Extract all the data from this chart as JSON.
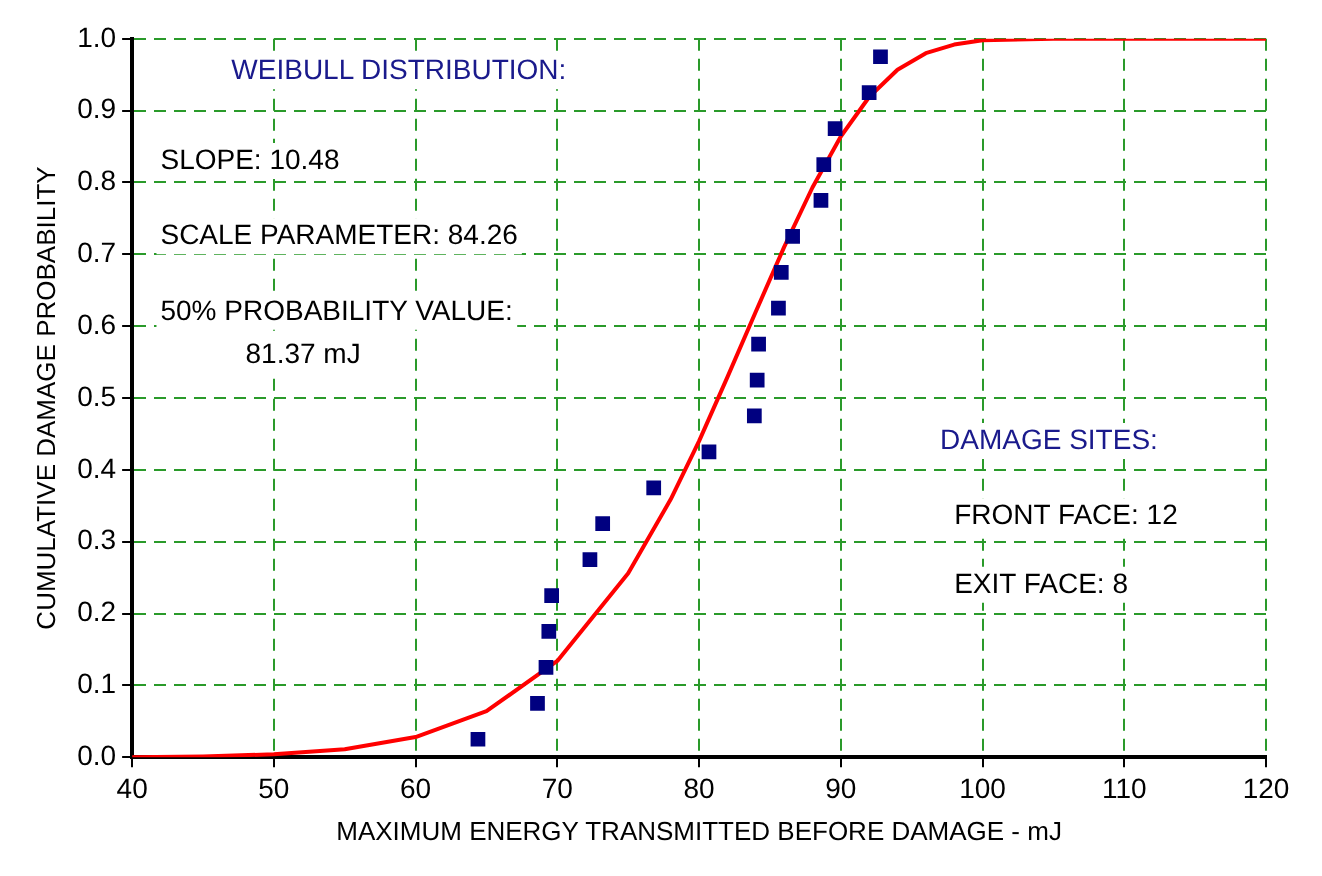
{
  "chart_data": {
    "type": "scatter",
    "xlabel": "MAXIMUM ENERGY TRANSMITTED BEFORE DAMAGE - mJ",
    "ylabel": "CUMULATIVE DAMAGE PROBABILITY",
    "series": [
      {
        "color": "#000080",
        "marker": "square",
        "x": [
          64.4,
          68.6,
          69.2,
          69.4,
          69.6,
          72.3,
          73.2,
          76.8,
          80.7,
          83.9,
          84.1,
          84.2,
          85.6,
          85.8,
          86.6,
          88.6,
          88.8,
          89.6,
          92.0,
          92.8
        ],
        "values": [
          0.025,
          0.075,
          0.125,
          0.175,
          0.225,
          0.275,
          0.325,
          0.375,
          0.425,
          0.475,
          0.525,
          0.575,
          0.625,
          0.675,
          0.725,
          0.775,
          0.825,
          0.875,
          0.925,
          0.975
        ]
      },
      {
        "type": "line",
        "color": "#ff0000",
        "marker": "none",
        "line_style": "solid",
        "x": [
          40,
          45,
          50,
          55,
          60,
          65,
          70,
          75,
          78,
          80,
          82,
          84,
          86,
          88,
          90,
          92,
          94,
          96,
          98,
          100,
          105,
          110,
          120
        ],
        "values": [
          0.0,
          0.001,
          0.004,
          0.011,
          0.028,
          0.064,
          0.134,
          0.256,
          0.359,
          0.44,
          0.529,
          0.62,
          0.71,
          0.793,
          0.864,
          0.919,
          0.957,
          0.98,
          0.992,
          0.998,
          1.0,
          1.0,
          1.0
        ]
      }
    ],
    "xlim": [
      40,
      120
    ],
    "xticks": [
      40,
      50,
      60,
      70,
      80,
      90,
      100,
      110,
      120
    ],
    "ylim": [
      0,
      1
    ],
    "yticks": [
      {
        "value": 0,
        "label": "0.0"
      },
      {
        "value": 0.1,
        "label": "0.1"
      },
      {
        "value": 0.2,
        "label": "0.2"
      },
      {
        "value": 0.3,
        "label": "0.3"
      },
      {
        "value": 0.4,
        "label": "0.4"
      },
      {
        "value": 0.5,
        "label": "0.5"
      },
      {
        "value": 0.6,
        "label": "0.6"
      },
      {
        "value": 0.7,
        "label": "0.7"
      },
      {
        "value": 0.8,
        "label": "0.8"
      },
      {
        "value": 0.9,
        "label": "0.9"
      },
      {
        "value": 1,
        "label": "1.0"
      }
    ],
    "grid": true,
    "legend": false,
    "annotations": [
      "WEIBULL DISTRIBUTION:",
      "SLOPE: 10.48",
      "SCALE PARAMETER: 84.26",
      "50% PROBABILITY VALUE:",
      "81.37 mJ",
      "DAMAGE SITES:",
      "FRONT FACE: 12",
      "EXIT FACE: 8"
    ]
  }
}
